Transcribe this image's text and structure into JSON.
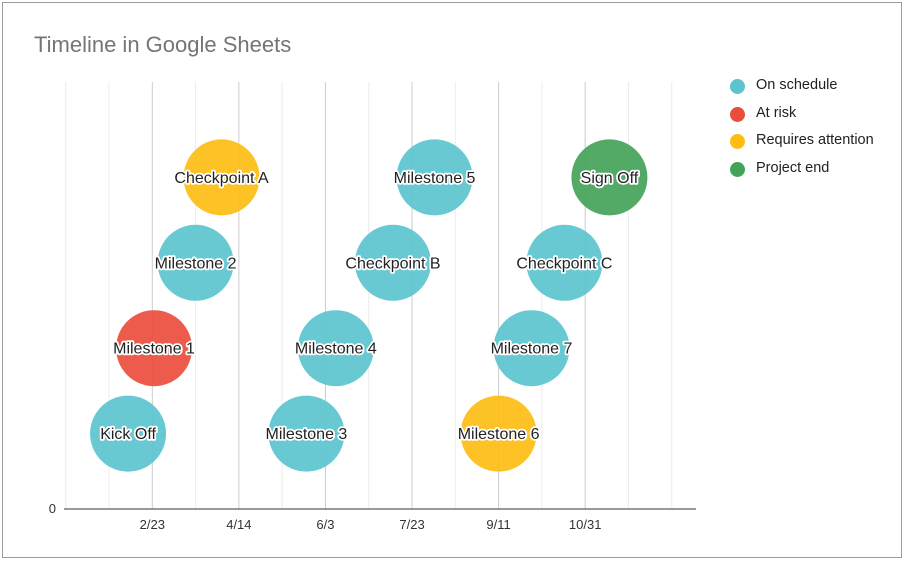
{
  "chart_data": {
    "type": "bubble",
    "title": "Timeline in Google Sheets",
    "x_ticks": [
      "2/23",
      "4/14",
      "6/3",
      "7/23",
      "9/11",
      "10/31"
    ],
    "y_ticks": [
      "0"
    ],
    "x_range": [
      "2023-01-03",
      "2024-01-03"
    ],
    "y_range": [
      0,
      5
    ],
    "grid": true,
    "legend_position": "right",
    "categories": [
      {
        "name": "On schedule",
        "color": "#5bc4cf"
      },
      {
        "name": "At risk",
        "color": "#ea4d3c"
      },
      {
        "name": "Requires attention",
        "color": "#fdbd13"
      },
      {
        "name": "Project end",
        "color": "#44a35a"
      }
    ],
    "points": [
      {
        "label": "Kick Off",
        "x": "2023-02-09",
        "y": 1,
        "category": "On schedule"
      },
      {
        "label": "Milestone 1",
        "x": "2023-02-24",
        "y": 2,
        "category": "At risk"
      },
      {
        "label": "Milestone 2",
        "x": "2023-03-20",
        "y": 3,
        "category": "On schedule"
      },
      {
        "label": "Checkpoint A",
        "x": "2023-04-04",
        "y": 4,
        "category": "Requires attention"
      },
      {
        "label": "Milestone 3",
        "x": "2023-05-23",
        "y": 1,
        "category": "On schedule"
      },
      {
        "label": "Milestone 4",
        "x": "2023-06-09",
        "y": 2,
        "category": "On schedule"
      },
      {
        "label": "Checkpoint B",
        "x": "2023-07-12",
        "y": 3,
        "category": "On schedule"
      },
      {
        "label": "Milestone 5",
        "x": "2023-08-05",
        "y": 4,
        "category": "On schedule"
      },
      {
        "label": "Milestone 6",
        "x": "2023-09-11",
        "y": 1,
        "category": "Requires attention"
      },
      {
        "label": "Milestone 7",
        "x": "2023-09-30",
        "y": 2,
        "category": "On schedule"
      },
      {
        "label": "Checkpoint C",
        "x": "2023-10-19",
        "y": 3,
        "category": "On schedule"
      },
      {
        "label": "Sign Off",
        "x": "2023-11-14",
        "y": 4,
        "category": "Project end"
      }
    ]
  }
}
